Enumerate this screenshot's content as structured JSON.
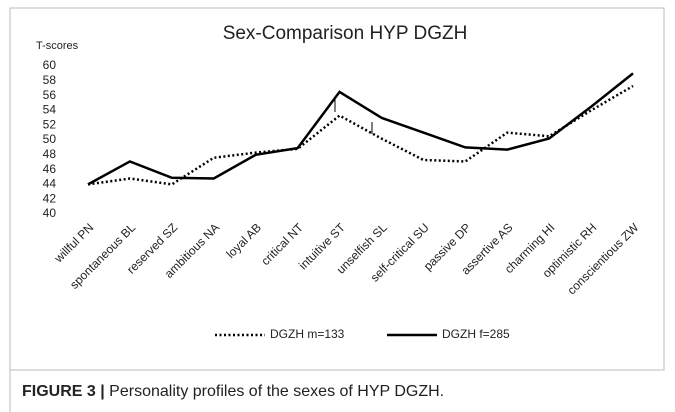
{
  "chart_data": {
    "type": "line",
    "title": "Sex-Comparison HYP DGZH",
    "ylabel": "T-scores",
    "categories": [
      "willful PN",
      "spontaneous BL",
      "reserved SZ",
      "ambitious NA",
      "loyal AB",
      "critical NT",
      "intuitive ST",
      "unselfish SL",
      "self-critical SU",
      "passive DP",
      "assertive AS",
      "charming HI",
      "optimistic RH",
      "conscientious ZW"
    ],
    "series": [
      {
        "name": "DGZH m=133",
        "color": "#000000",
        "dash": "dotted",
        "values": [
          44,
          44.8,
          44,
          47.6,
          48.3,
          48.8,
          53.3,
          50.2,
          47.3,
          47.1,
          51,
          50.5,
          54,
          57.3
        ]
      },
      {
        "name": "DGZH f=285",
        "color": "#000000",
        "dash": "solid",
        "values": [
          44,
          47.1,
          44.9,
          44.8,
          48,
          48.9,
          56.5,
          53,
          51,
          49,
          48.7,
          50.2,
          54.5,
          59
        ]
      }
    ],
    "ylim": [
      40,
      60
    ],
    "yticks": [
      40,
      42,
      44,
      46,
      48,
      50,
      52,
      54,
      56,
      58,
      60
    ],
    "grid": false,
    "legend": "bottom"
  },
  "caption": {
    "label": "FIGURE 3 |",
    "text": "Personality profiles of the sexes of HYP DGZH."
  }
}
